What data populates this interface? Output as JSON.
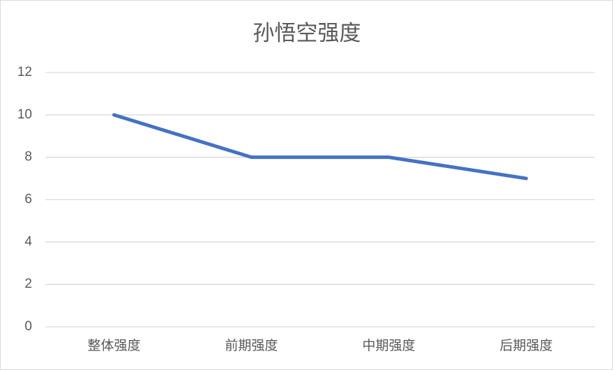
{
  "chart_data": {
    "type": "line",
    "title": "孙悟空强度",
    "categories": [
      "整体强度",
      "前期强度",
      "中期强度",
      "后期强度"
    ],
    "values": [
      10,
      8,
      8,
      7
    ],
    "color": "#4472c4",
    "ylim": [
      0,
      12
    ],
    "yticks": [
      0,
      2,
      4,
      6,
      8,
      10,
      12
    ],
    "grid": true
  }
}
